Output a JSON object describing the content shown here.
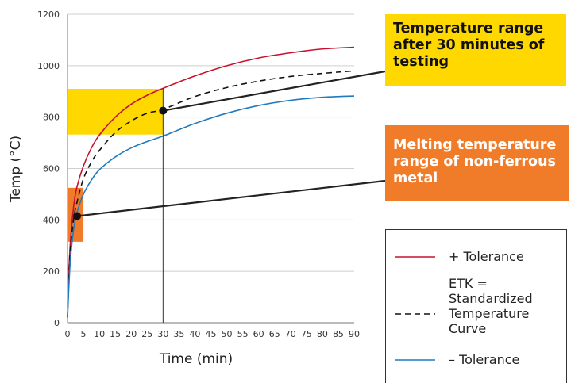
{
  "chart_data": {
    "type": "line",
    "xlabel": "Time (min)",
    "ylabel": "Temp (°C)",
    "xlim": [
      0,
      90
    ],
    "ylim": [
      0,
      1200
    ],
    "x_ticks": [
      0,
      5,
      10,
      15,
      20,
      25,
      30,
      35,
      40,
      45,
      50,
      55,
      60,
      65,
      70,
      75,
      80,
      85,
      90
    ],
    "y_ticks": [
      0,
      200,
      400,
      600,
      800,
      1000,
      1200
    ],
    "grid": "horizontal",
    "series": [
      {
        "name": "+ Tolerance",
        "color": "#c8102e",
        "dash": "solid",
        "x": [
          0,
          0.5,
          1,
          2,
          3,
          5,
          7.5,
          10,
          15,
          20,
          25,
          30,
          40,
          50,
          60,
          70,
          80,
          90
        ],
        "y": [
          20,
          220,
          330,
          460,
          530,
          610,
          680,
          730,
          800,
          850,
          885,
          912,
          960,
          1000,
          1030,
          1050,
          1065,
          1072
        ]
      },
      {
        "name": "ETK = Standardized Temperature Curve",
        "color": "#111111",
        "dash": "dashed",
        "x": [
          0,
          0.5,
          1,
          2,
          3,
          5,
          7.5,
          10,
          15,
          20,
          25,
          30,
          40,
          50,
          60,
          70,
          80,
          90
        ],
        "y": [
          20,
          200,
          300,
          410,
          470,
          560,
          625,
          670,
          740,
          785,
          815,
          830,
          880,
          915,
          940,
          958,
          970,
          980
        ]
      },
      {
        "name": "– Tolerance",
        "color": "#1f7ac0",
        "dash": "solid",
        "x": [
          0,
          0.5,
          1,
          2,
          3,
          5,
          7.5,
          10,
          15,
          20,
          25,
          30,
          40,
          50,
          60,
          70,
          80,
          90
        ],
        "y": [
          20,
          160,
          260,
          370,
          430,
          500,
          555,
          595,
          645,
          680,
          705,
          726,
          775,
          815,
          845,
          865,
          877,
          882
        ]
      }
    ],
    "highlights": [
      {
        "name": "yellow-band",
        "color": "#ffd800",
        "x": [
          0,
          30
        ],
        "y": [
          732,
          910
        ]
      },
      {
        "name": "orange-band",
        "color": "#f07c2a",
        "x": [
          0,
          5
        ],
        "y": [
          315,
          525
        ]
      }
    ],
    "markers": [
      {
        "name": "marker-30min",
        "x": 30,
        "y": 825
      },
      {
        "name": "marker-3min",
        "x": 3,
        "y": 415
      }
    ],
    "reference_line_x": 30,
    "annotations": [
      {
        "lines": [
          "Temperature range",
          "after 30 minutes of",
          "testing"
        ],
        "color": "#ffd800",
        "text_color": "#111111"
      },
      {
        "lines": [
          "Melting temperature",
          "range of non-ferrous",
          "metal"
        ],
        "color": "#f07c2a",
        "text_color": "#ffffff"
      }
    ],
    "legend": {
      "placement": "bottom-right",
      "entries": [
        {
          "lines": [
            "+ Tolerance"
          ],
          "color": "#c8102e",
          "dash": "solid"
        },
        {
          "lines": [
            "ETK =",
            "Standardized",
            "Temperature",
            "Curve"
          ],
          "color": "#111111",
          "dash": "dashed"
        },
        {
          "lines": [
            "– Tolerance"
          ],
          "color": "#1f7ac0",
          "dash": "solid"
        }
      ]
    }
  }
}
